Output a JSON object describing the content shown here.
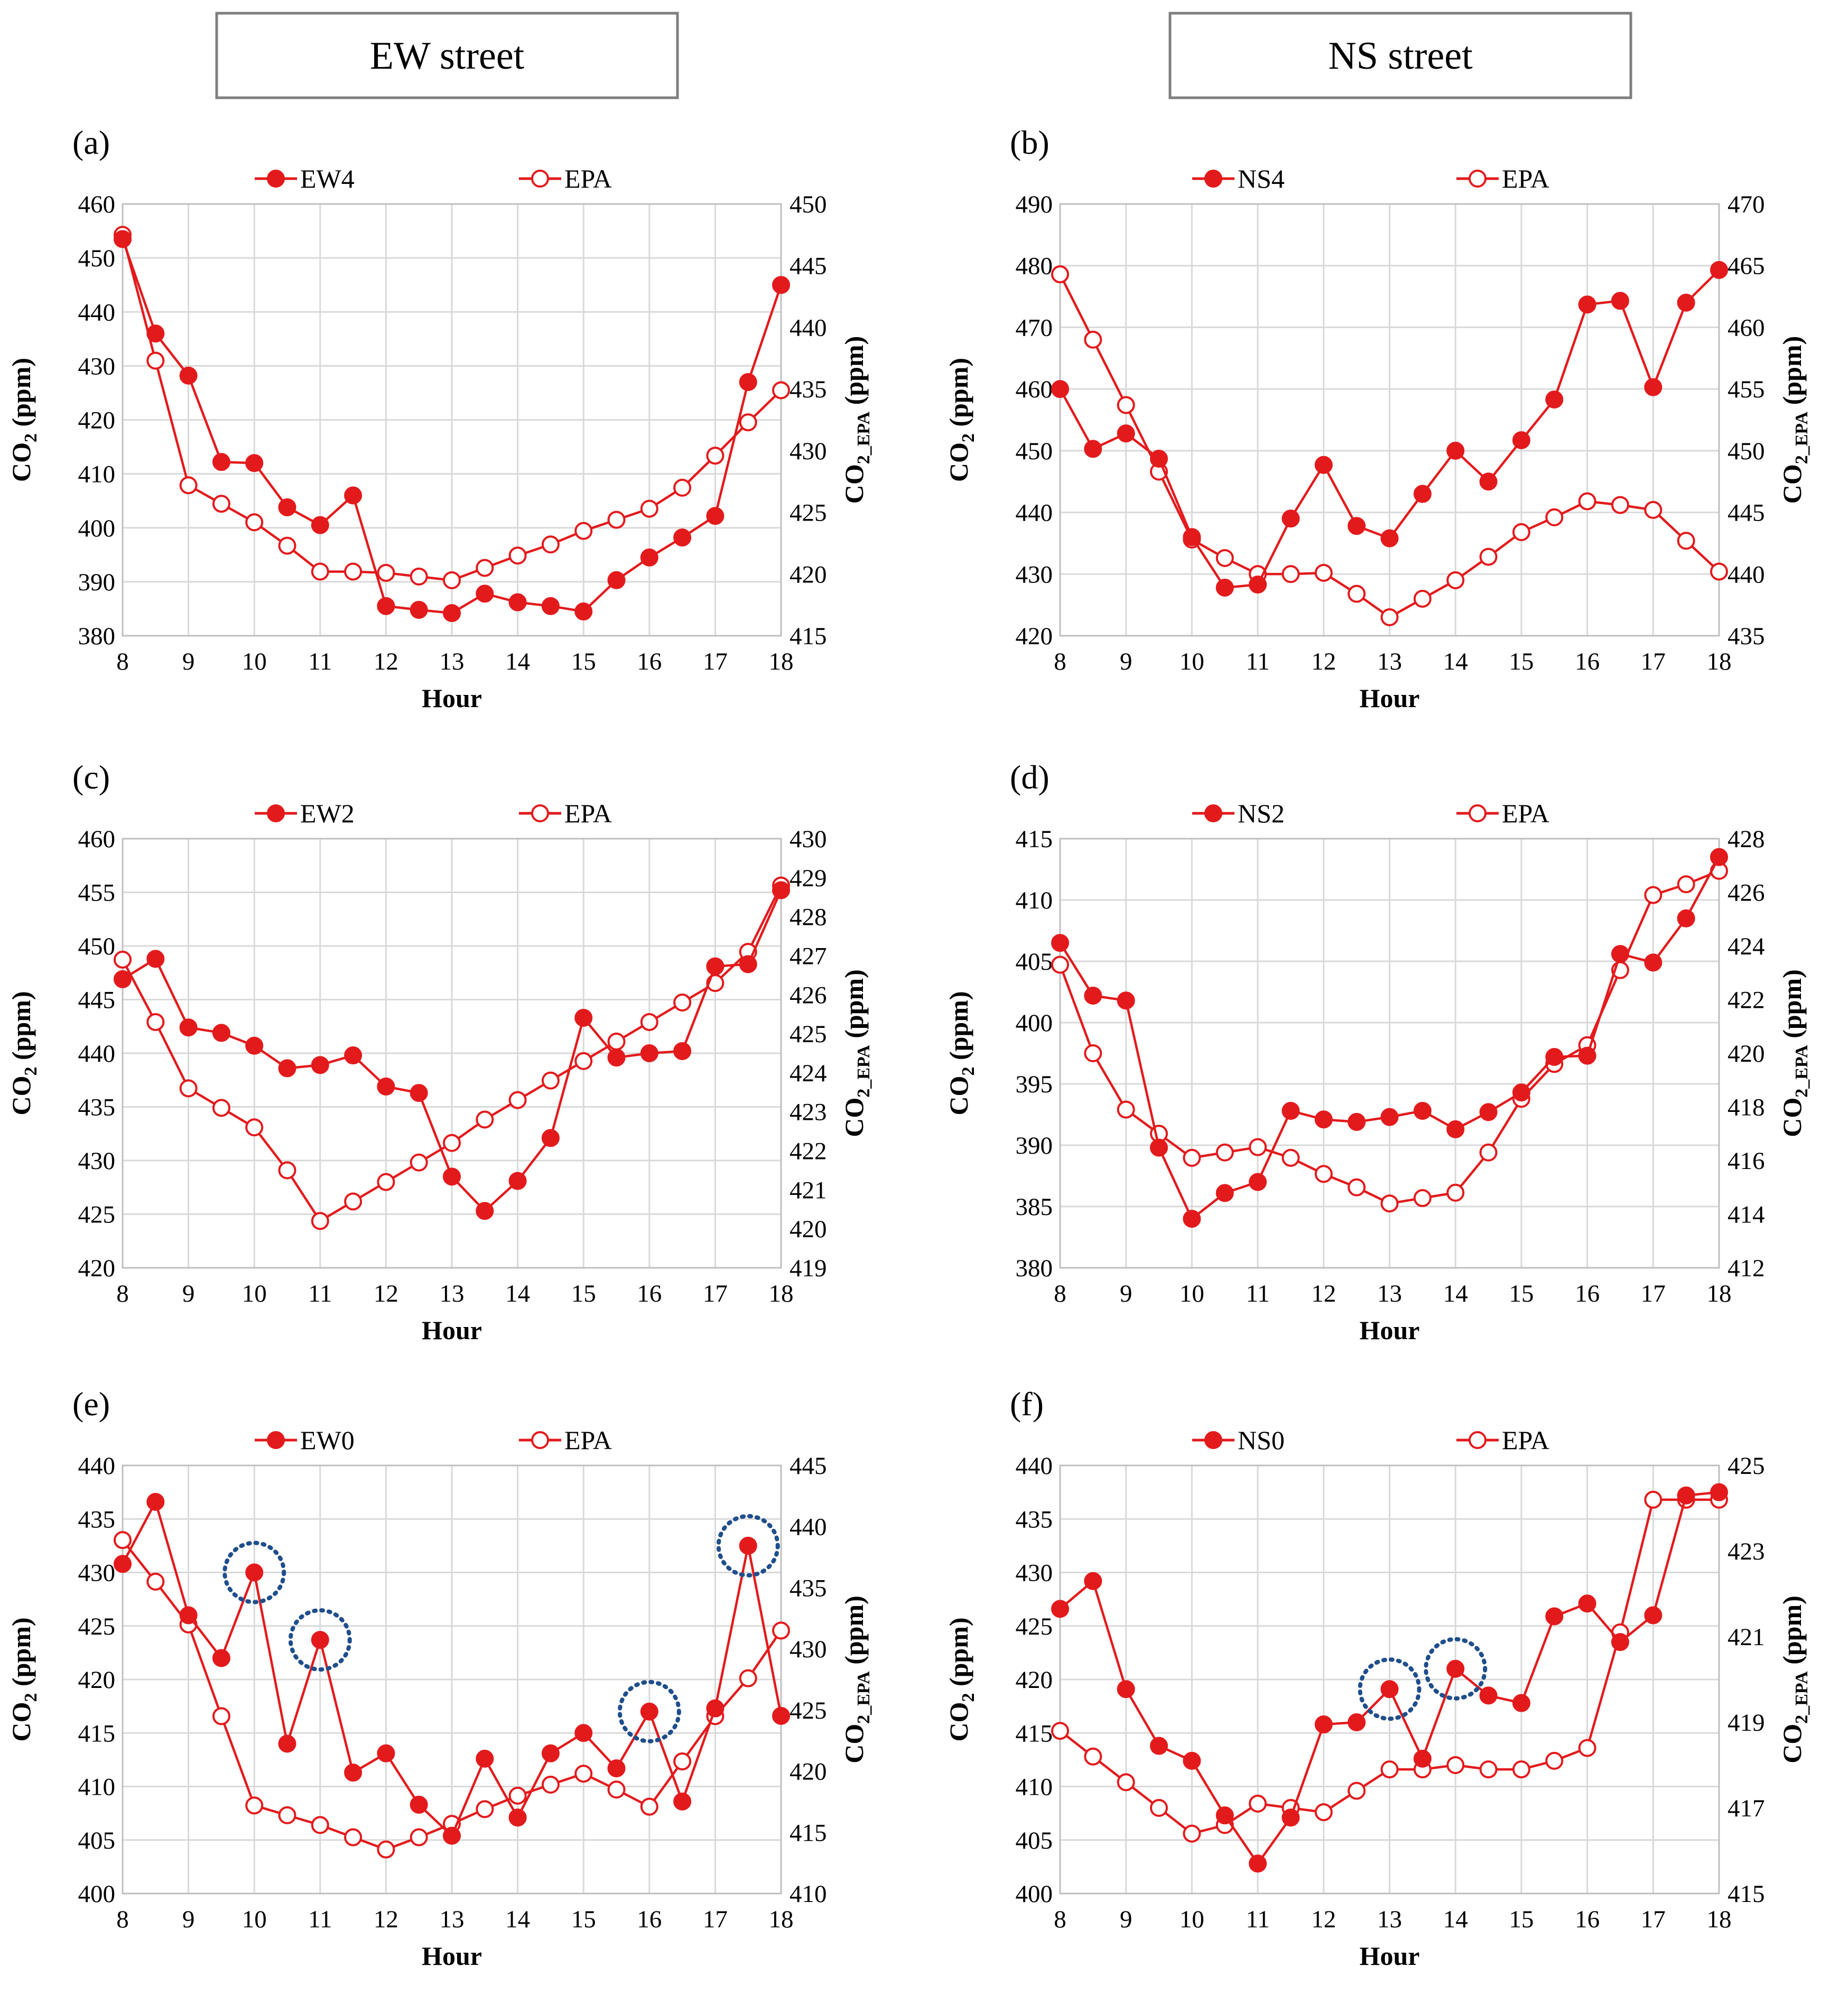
{
  "headers": [
    "EW street",
    "NS street"
  ],
  "colors": {
    "series": "#e31a1c",
    "grid": "#d9d9d9",
    "axis": "#bfbfbf",
    "text": "#000000",
    "header_border": "#7f7f7f",
    "highlight": "#1f4e8c"
  },
  "xlabel": "Hour",
  "ylabel_main": "CO",
  "ylabel_main_sub": "2",
  "ylabel_main_unit": " (ppm)",
  "ylabel_sec": "CO",
  "ylabel_sec_sub": "2_EPA",
  "ylabel_sec_unit": " (ppm)",
  "x_ticks": [
    8,
    9,
    10,
    11,
    12,
    13,
    14,
    15,
    16,
    17,
    18
  ],
  "x_values": [
    8,
    8.5,
    9,
    9.5,
    10,
    10.5,
    11,
    11.5,
    12,
    12.5,
    13,
    13.5,
    14,
    14.5,
    15,
    15.5,
    16,
    16.5,
    17,
    17.5,
    18
  ],
  "chart_data": [
    {
      "panel": "(a)",
      "type": "line",
      "series": [
        {
          "name": "EW4",
          "axis": "left",
          "marker": "filled",
          "values": [
            453.5,
            436,
            428.2,
            412.2,
            412,
            403.8,
            400.5,
            406,
            385.5,
            384.8,
            384.2,
            387.8,
            386.2,
            385.5,
            384.5,
            390.3,
            394.5,
            398.2,
            402.2,
            427,
            445
          ]
        },
        {
          "name": "EPA",
          "axis": "right",
          "marker": "open",
          "values": [
            447.5,
            437.3,
            427.2,
            425.7,
            424.2,
            422.3,
            420.2,
            420.2,
            420.1,
            419.8,
            419.5,
            420.5,
            421.5,
            422.4,
            423.5,
            424.4,
            425.3,
            427,
            429.6,
            432.3,
            434.9
          ]
        }
      ],
      "ylim": [
        380,
        460
      ],
      "y_ticks": [
        380,
        390,
        400,
        410,
        420,
        430,
        440,
        450,
        460
      ],
      "y2lim": [
        415,
        450
      ],
      "y2_ticks": [
        415,
        420,
        425,
        430,
        435,
        440,
        445,
        450
      ],
      "highlights": []
    },
    {
      "panel": "(b)",
      "type": "line",
      "series": [
        {
          "name": "NS4",
          "axis": "left",
          "marker": "filled",
          "values": [
            460,
            450.3,
            452.8,
            448.7,
            436,
            427.8,
            428.3,
            439,
            447.7,
            437.8,
            435.8,
            443,
            450,
            445,
            451.7,
            458.3,
            473.7,
            474.3,
            460.3,
            474,
            479.3
          ]
        },
        {
          "name": "EPA",
          "axis": "right",
          "marker": "open",
          "values": [
            464.3,
            459,
            453.7,
            448.3,
            442.8,
            441.3,
            440,
            440,
            440.1,
            438.4,
            436.5,
            438,
            439.5,
            441.4,
            443.4,
            444.6,
            445.9,
            445.6,
            445.2,
            442.7,
            440.2
          ]
        }
      ],
      "ylim": [
        420,
        490
      ],
      "y_ticks": [
        420,
        430,
        440,
        450,
        460,
        470,
        480,
        490
      ],
      "y2lim": [
        435,
        470
      ],
      "y2_ticks": [
        435,
        440,
        445,
        450,
        455,
        460,
        465,
        470
      ],
      "highlights": []
    },
    {
      "panel": "(c)",
      "type": "line",
      "series": [
        {
          "name": "EW2",
          "axis": "left",
          "marker": "filled",
          "values": [
            446.9,
            448.8,
            442.4,
            441.9,
            440.7,
            438.6,
            438.9,
            439.8,
            436.9,
            436.3,
            428.5,
            425.3,
            428.1,
            432.1,
            443.3,
            439.6,
            440,
            440.2,
            448.1,
            448.3,
            455.2
          ]
        },
        {
          "name": "EPA",
          "axis": "right",
          "marker": "open",
          "values": [
            426.9,
            425.3,
            423.6,
            423.1,
            422.6,
            421.5,
            420.2,
            420.7,
            421.2,
            421.7,
            422.2,
            422.8,
            423.3,
            423.8,
            424.3,
            424.8,
            425.3,
            425.8,
            426.3,
            427.1,
            428.8
          ]
        }
      ],
      "ylim": [
        420,
        460
      ],
      "y_ticks": [
        420,
        425,
        430,
        435,
        440,
        445,
        450,
        455,
        460
      ],
      "y2lim": [
        419,
        430
      ],
      "y2_ticks": [
        419,
        420,
        421,
        422,
        423,
        424,
        425,
        426,
        427,
        428,
        429,
        430
      ],
      "highlights": []
    },
    {
      "panel": "(d)",
      "type": "line",
      "series": [
        {
          "name": "NS2",
          "axis": "left",
          "marker": "filled",
          "values": [
            406.5,
            402.2,
            401.8,
            389.8,
            384,
            386.1,
            387,
            392.8,
            392.1,
            391.9,
            392.3,
            392.8,
            391.3,
            392.7,
            394.3,
            397.2,
            397.3,
            405.6,
            404.9,
            408.5,
            413.5
          ]
        },
        {
          "name": "EPA",
          "axis": "right",
          "marker": "open",
          "values": [
            423.3,
            420,
            417.9,
            417,
            416.1,
            416.3,
            416.5,
            416.1,
            415.5,
            415,
            414.4,
            414.6,
            414.8,
            416.3,
            418.3,
            419.6,
            420.3,
            423.1,
            425.9,
            426.3,
            426.8
          ]
        }
      ],
      "ylim": [
        380,
        415
      ],
      "y_ticks": [
        380,
        385,
        390,
        395,
        400,
        405,
        410,
        415
      ],
      "y2lim": [
        412,
        428
      ],
      "y2_ticks": [
        412,
        414,
        416,
        418,
        420,
        422,
        424,
        426,
        428
      ],
      "highlights": []
    },
    {
      "panel": "(e)",
      "type": "line",
      "series": [
        {
          "name": "EW0",
          "axis": "left",
          "marker": "filled",
          "values": [
            430.8,
            436.6,
            426,
            422,
            430,
            414,
            423.7,
            411.3,
            413.1,
            408.3,
            405.4,
            412.6,
            407.1,
            413.1,
            415,
            411.7,
            417,
            408.6,
            417.3,
            432.5,
            416.6
          ]
        },
        {
          "name": "EPA",
          "axis": "right",
          "marker": "open",
          "values": [
            438.9,
            435.5,
            432,
            424.5,
            417.2,
            416.4,
            415.6,
            414.6,
            413.6,
            414.6,
            415.7,
            416.9,
            418,
            418.9,
            419.8,
            418.5,
            417.1,
            420.8,
            424.5,
            427.6,
            431.5
          ]
        }
      ],
      "ylim": [
        400,
        440
      ],
      "y_ticks": [
        400,
        405,
        410,
        415,
        420,
        425,
        430,
        435,
        440
      ],
      "y2lim": [
        410,
        445
      ],
      "y2_ticks": [
        410,
        415,
        420,
        425,
        430,
        435,
        440,
        445
      ],
      "highlights": [
        10,
        11,
        16,
        17.5
      ]
    },
    {
      "panel": "(f)",
      "type": "line",
      "series": [
        {
          "name": "NS0",
          "axis": "left",
          "marker": "filled",
          "values": [
            426.6,
            429.2,
            419.1,
            413.8,
            412.4,
            407.3,
            402.8,
            407.1,
            415.8,
            416,
            419.1,
            412.6,
            421,
            418.5,
            417.8,
            425.9,
            427.1,
            423.5,
            426,
            437.2,
            437.5
          ]
        },
        {
          "name": "EPA",
          "axis": "right",
          "marker": "open",
          "values": [
            418.8,
            418.2,
            417.6,
            417,
            416.4,
            416.6,
            417.1,
            417,
            416.9,
            417.4,
            417.9,
            417.9,
            418,
            417.9,
            417.9,
            418.1,
            418.4,
            421.1,
            424.2,
            424.2,
            424.2
          ]
        }
      ],
      "ylim": [
        400,
        440
      ],
      "y_ticks": [
        400,
        405,
        410,
        415,
        420,
        425,
        430,
        435,
        440
      ],
      "y2lim": [
        415,
        425
      ],
      "y2_ticks": [
        415,
        417,
        419,
        421,
        423,
        425
      ],
      "highlights": [
        13,
        14
      ]
    }
  ]
}
